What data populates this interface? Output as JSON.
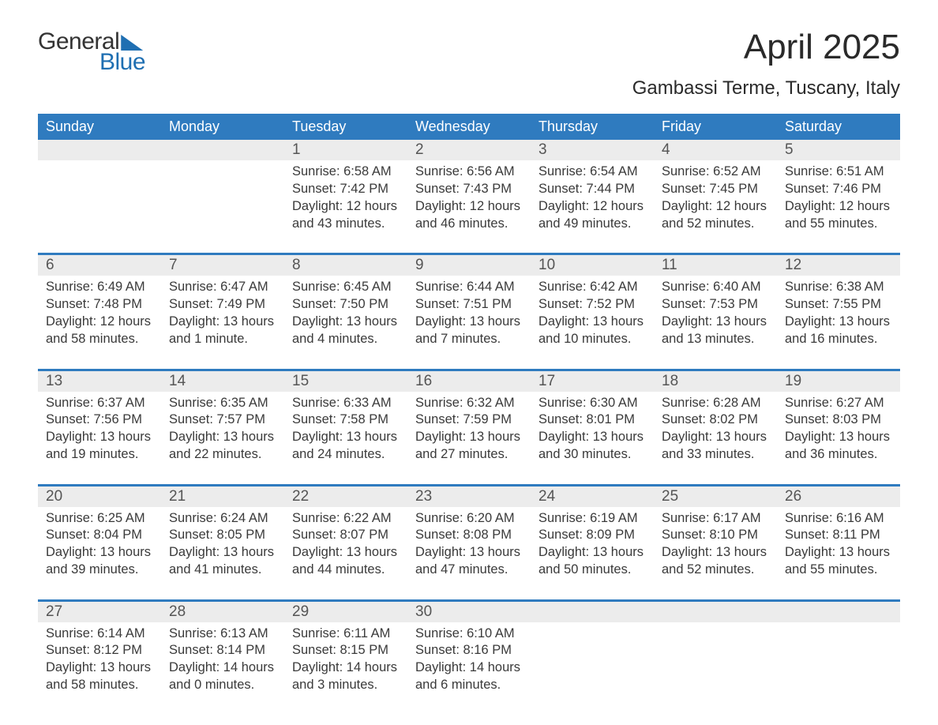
{
  "brand": {
    "word1": "General",
    "word2": "Blue"
  },
  "title": "April 2025",
  "location": "Gambassi Terme, Tuscany, Italy",
  "colors": {
    "header_bg": "#2f7bbf",
    "header_text": "#ffffff",
    "daterow_bg": "#ececec",
    "week_border": "#2f7bbf",
    "body_text": "#3a3a3a",
    "logo_blue": "#1f6fb2",
    "page_bg": "#ffffff"
  },
  "day_names": [
    "Sunday",
    "Monday",
    "Tuesday",
    "Wednesday",
    "Thursday",
    "Friday",
    "Saturday"
  ],
  "weeks": [
    {
      "first": true,
      "days": [
        {
          "n": "",
          "sunrise": "",
          "sunset": "",
          "daylight1": "",
          "daylight2": ""
        },
        {
          "n": "",
          "sunrise": "",
          "sunset": "",
          "daylight1": "",
          "daylight2": ""
        },
        {
          "n": "1",
          "sunrise": "Sunrise: 6:58 AM",
          "sunset": "Sunset: 7:42 PM",
          "daylight1": "Daylight: 12 hours",
          "daylight2": "and 43 minutes."
        },
        {
          "n": "2",
          "sunrise": "Sunrise: 6:56 AM",
          "sunset": "Sunset: 7:43 PM",
          "daylight1": "Daylight: 12 hours",
          "daylight2": "and 46 minutes."
        },
        {
          "n": "3",
          "sunrise": "Sunrise: 6:54 AM",
          "sunset": "Sunset: 7:44 PM",
          "daylight1": "Daylight: 12 hours",
          "daylight2": "and 49 minutes."
        },
        {
          "n": "4",
          "sunrise": "Sunrise: 6:52 AM",
          "sunset": "Sunset: 7:45 PM",
          "daylight1": "Daylight: 12 hours",
          "daylight2": "and 52 minutes."
        },
        {
          "n": "5",
          "sunrise": "Sunrise: 6:51 AM",
          "sunset": "Sunset: 7:46 PM",
          "daylight1": "Daylight: 12 hours",
          "daylight2": "and 55 minutes."
        }
      ]
    },
    {
      "days": [
        {
          "n": "6",
          "sunrise": "Sunrise: 6:49 AM",
          "sunset": "Sunset: 7:48 PM",
          "daylight1": "Daylight: 12 hours",
          "daylight2": "and 58 minutes."
        },
        {
          "n": "7",
          "sunrise": "Sunrise: 6:47 AM",
          "sunset": "Sunset: 7:49 PM",
          "daylight1": "Daylight: 13 hours",
          "daylight2": "and 1 minute."
        },
        {
          "n": "8",
          "sunrise": "Sunrise: 6:45 AM",
          "sunset": "Sunset: 7:50 PM",
          "daylight1": "Daylight: 13 hours",
          "daylight2": "and 4 minutes."
        },
        {
          "n": "9",
          "sunrise": "Sunrise: 6:44 AM",
          "sunset": "Sunset: 7:51 PM",
          "daylight1": "Daylight: 13 hours",
          "daylight2": "and 7 minutes."
        },
        {
          "n": "10",
          "sunrise": "Sunrise: 6:42 AM",
          "sunset": "Sunset: 7:52 PM",
          "daylight1": "Daylight: 13 hours",
          "daylight2": "and 10 minutes."
        },
        {
          "n": "11",
          "sunrise": "Sunrise: 6:40 AM",
          "sunset": "Sunset: 7:53 PM",
          "daylight1": "Daylight: 13 hours",
          "daylight2": "and 13 minutes."
        },
        {
          "n": "12",
          "sunrise": "Sunrise: 6:38 AM",
          "sunset": "Sunset: 7:55 PM",
          "daylight1": "Daylight: 13 hours",
          "daylight2": "and 16 minutes."
        }
      ]
    },
    {
      "days": [
        {
          "n": "13",
          "sunrise": "Sunrise: 6:37 AM",
          "sunset": "Sunset: 7:56 PM",
          "daylight1": "Daylight: 13 hours",
          "daylight2": "and 19 minutes."
        },
        {
          "n": "14",
          "sunrise": "Sunrise: 6:35 AM",
          "sunset": "Sunset: 7:57 PM",
          "daylight1": "Daylight: 13 hours",
          "daylight2": "and 22 minutes."
        },
        {
          "n": "15",
          "sunrise": "Sunrise: 6:33 AM",
          "sunset": "Sunset: 7:58 PM",
          "daylight1": "Daylight: 13 hours",
          "daylight2": "and 24 minutes."
        },
        {
          "n": "16",
          "sunrise": "Sunrise: 6:32 AM",
          "sunset": "Sunset: 7:59 PM",
          "daylight1": "Daylight: 13 hours",
          "daylight2": "and 27 minutes."
        },
        {
          "n": "17",
          "sunrise": "Sunrise: 6:30 AM",
          "sunset": "Sunset: 8:01 PM",
          "daylight1": "Daylight: 13 hours",
          "daylight2": "and 30 minutes."
        },
        {
          "n": "18",
          "sunrise": "Sunrise: 6:28 AM",
          "sunset": "Sunset: 8:02 PM",
          "daylight1": "Daylight: 13 hours",
          "daylight2": "and 33 minutes."
        },
        {
          "n": "19",
          "sunrise": "Sunrise: 6:27 AM",
          "sunset": "Sunset: 8:03 PM",
          "daylight1": "Daylight: 13 hours",
          "daylight2": "and 36 minutes."
        }
      ]
    },
    {
      "days": [
        {
          "n": "20",
          "sunrise": "Sunrise: 6:25 AM",
          "sunset": "Sunset: 8:04 PM",
          "daylight1": "Daylight: 13 hours",
          "daylight2": "and 39 minutes."
        },
        {
          "n": "21",
          "sunrise": "Sunrise: 6:24 AM",
          "sunset": "Sunset: 8:05 PM",
          "daylight1": "Daylight: 13 hours",
          "daylight2": "and 41 minutes."
        },
        {
          "n": "22",
          "sunrise": "Sunrise: 6:22 AM",
          "sunset": "Sunset: 8:07 PM",
          "daylight1": "Daylight: 13 hours",
          "daylight2": "and 44 minutes."
        },
        {
          "n": "23",
          "sunrise": "Sunrise: 6:20 AM",
          "sunset": "Sunset: 8:08 PM",
          "daylight1": "Daylight: 13 hours",
          "daylight2": "and 47 minutes."
        },
        {
          "n": "24",
          "sunrise": "Sunrise: 6:19 AM",
          "sunset": "Sunset: 8:09 PM",
          "daylight1": "Daylight: 13 hours",
          "daylight2": "and 50 minutes."
        },
        {
          "n": "25",
          "sunrise": "Sunrise: 6:17 AM",
          "sunset": "Sunset: 8:10 PM",
          "daylight1": "Daylight: 13 hours",
          "daylight2": "and 52 minutes."
        },
        {
          "n": "26",
          "sunrise": "Sunrise: 6:16 AM",
          "sunset": "Sunset: 8:11 PM",
          "daylight1": "Daylight: 13 hours",
          "daylight2": "and 55 minutes."
        }
      ]
    },
    {
      "last": true,
      "days": [
        {
          "n": "27",
          "sunrise": "Sunrise: 6:14 AM",
          "sunset": "Sunset: 8:12 PM",
          "daylight1": "Daylight: 13 hours",
          "daylight2": "and 58 minutes."
        },
        {
          "n": "28",
          "sunrise": "Sunrise: 6:13 AM",
          "sunset": "Sunset: 8:14 PM",
          "daylight1": "Daylight: 14 hours",
          "daylight2": "and 0 minutes."
        },
        {
          "n": "29",
          "sunrise": "Sunrise: 6:11 AM",
          "sunset": "Sunset: 8:15 PM",
          "daylight1": "Daylight: 14 hours",
          "daylight2": "and 3 minutes."
        },
        {
          "n": "30",
          "sunrise": "Sunrise: 6:10 AM",
          "sunset": "Sunset: 8:16 PM",
          "daylight1": "Daylight: 14 hours",
          "daylight2": "and 6 minutes."
        },
        {
          "n": "",
          "sunrise": "",
          "sunset": "",
          "daylight1": "",
          "daylight2": ""
        },
        {
          "n": "",
          "sunrise": "",
          "sunset": "",
          "daylight1": "",
          "daylight2": ""
        },
        {
          "n": "",
          "sunrise": "",
          "sunset": "",
          "daylight1": "",
          "daylight2": ""
        }
      ]
    }
  ]
}
